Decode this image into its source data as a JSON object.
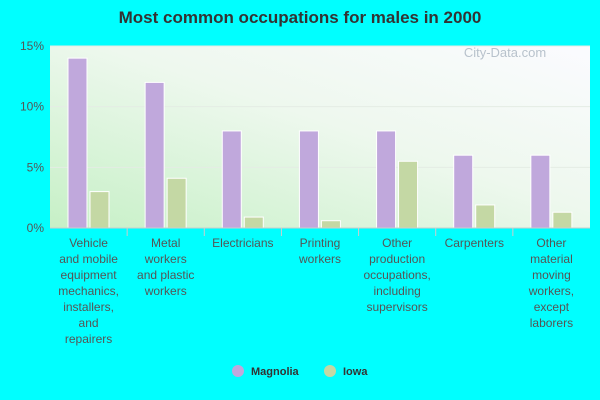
{
  "chart_data": {
    "type": "bar",
    "title": "Most common occupations for males in 2000",
    "categories": [
      "Vehicle and mobile equipment mechanics, installers, and repairers",
      "Metal workers and plastic workers",
      "Electricians",
      "Printing workers",
      "Other production occupations, including supervisors",
      "Carpenters",
      "Other material moving workers, except laborers"
    ],
    "category_lines": [
      [
        "Vehicle",
        "and mobile",
        "equipment",
        "mechanics,",
        "installers,",
        "and",
        "repairers"
      ],
      [
        "Metal",
        "workers",
        "and plastic",
        "workers"
      ],
      [
        "Electricians"
      ],
      [
        "Printing",
        "workers"
      ],
      [
        "Other",
        "production",
        "occupations,",
        "including",
        "supervisors"
      ],
      [
        "Carpenters"
      ],
      [
        "Other",
        "material",
        "moving",
        "workers,",
        "except",
        "laborers"
      ]
    ],
    "series": [
      {
        "name": "Magnolia",
        "color": "#c0a8dc",
        "values": [
          14.0,
          12.0,
          8.0,
          8.0,
          8.0,
          6.0,
          6.0
        ]
      },
      {
        "name": "Iowa",
        "color": "#c4d8a4",
        "values": [
          3.0,
          4.1,
          0.9,
          0.6,
          5.5,
          1.9,
          1.3
        ]
      }
    ],
    "yticks": [
      "0%",
      "5%",
      "10%",
      "15%"
    ],
    "ytick_values": [
      0,
      5,
      10,
      15
    ],
    "ylim": [
      0,
      15
    ],
    "xlabel": "",
    "ylabel": "",
    "grid": true,
    "legend_position": "bottom-center",
    "watermark": "City-Data.com"
  }
}
